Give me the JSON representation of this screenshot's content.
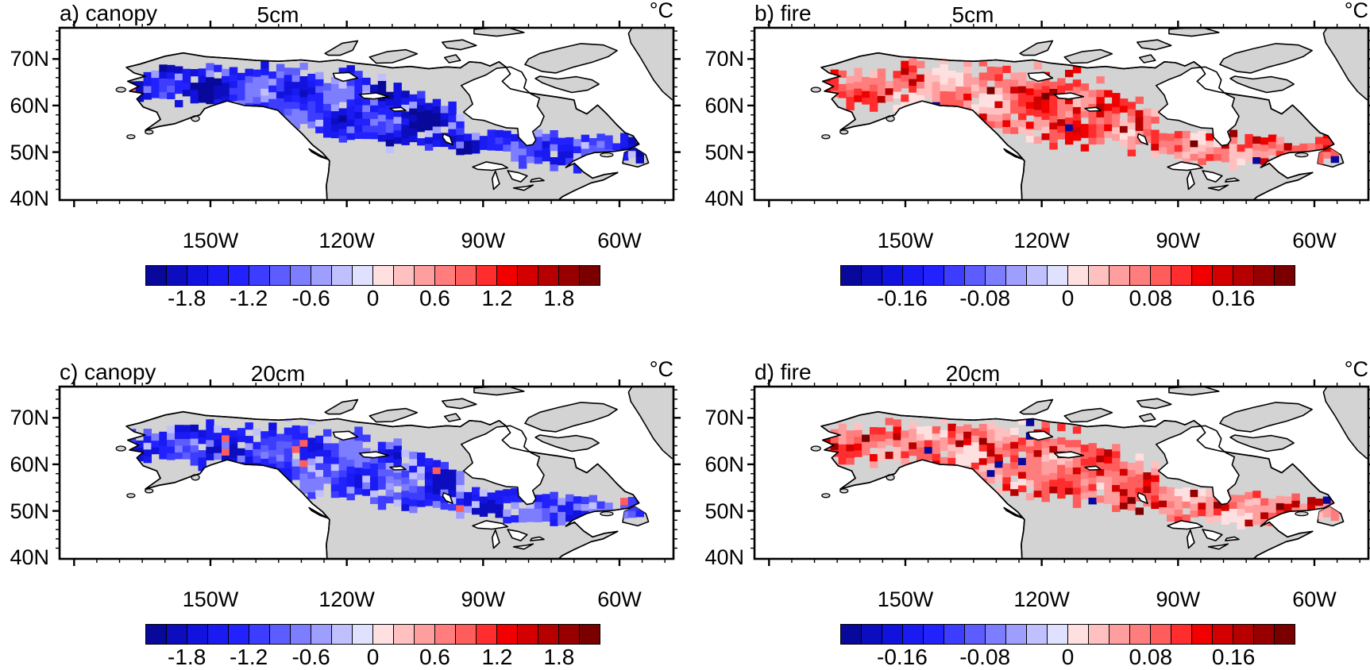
{
  "figure": {
    "unit_label": "°C",
    "land_color": "#d3d3d3",
    "ocean_color": "#ffffff",
    "coast_color": "#000000",
    "frame_color": "#000000"
  },
  "axis": {
    "lat_labels": [
      {
        "text": "70N",
        "lat": 70
      },
      {
        "text": "60N",
        "lat": 60
      },
      {
        "text": "50N",
        "lat": 50
      },
      {
        "text": "40N",
        "lat": 40
      }
    ],
    "lon_labels": [
      {
        "text": "150W",
        "lon": -150
      },
      {
        "text": "120W",
        "lon": -120
      },
      {
        "text": "90W",
        "lon": -90
      },
      {
        "text": "60W",
        "lon": -60
      }
    ]
  },
  "colorbar_colors": [
    "#08089b",
    "#0d0dc0",
    "#1212de",
    "#1a1af2",
    "#2222ff",
    "#3d3dff",
    "#5c5cff",
    "#7d7dff",
    "#9e9eff",
    "#c0c0ff",
    "#e0e0ff",
    "#ffe0e0",
    "#ffc0c0",
    "#ff9e9e",
    "#ff7d7d",
    "#ff5c5c",
    "#ff2d2d",
    "#f20000",
    "#d40000",
    "#b60000",
    "#980000",
    "#7a0000"
  ],
  "panels": [
    {
      "id": "a",
      "title": "a) canopy",
      "depth_label": "5cm",
      "unit_label": "°C",
      "scheme": "canopy_strong",
      "seed": 101,
      "colorbar_ticks": [
        {
          "label": "-1.8",
          "pos": 9.1
        },
        {
          "label": "-1.2",
          "pos": 22.7
        },
        {
          "label": "-0.6",
          "pos": 36.4
        },
        {
          "label": "0",
          "pos": 50
        },
        {
          "label": "0.6",
          "pos": 63.6
        },
        {
          "label": "1.2",
          "pos": 77.3
        },
        {
          "label": "1.8",
          "pos": 90.9
        }
      ]
    },
    {
      "id": "b",
      "title": "b) fire",
      "depth_label": "5cm",
      "unit_label": "°C",
      "scheme": "fire_strong",
      "seed": 202,
      "colorbar_ticks": [
        {
          "label": "-0.16",
          "pos": 13.6
        },
        {
          "label": "-0.08",
          "pos": 31.8
        },
        {
          "label": "0",
          "pos": 50
        },
        {
          "label": "0.08",
          "pos": 68.2
        },
        {
          "label": "0.16",
          "pos": 86.4
        }
      ]
    },
    {
      "id": "c",
      "title": "c) canopy",
      "depth_label": "20cm",
      "unit_label": "°C",
      "scheme": "canopy_soft",
      "seed": 303,
      "colorbar_ticks": [
        {
          "label": "-1.8",
          "pos": 9.1
        },
        {
          "label": "-1.2",
          "pos": 22.7
        },
        {
          "label": "-0.6",
          "pos": 36.4
        },
        {
          "label": "0",
          "pos": 50
        },
        {
          "label": "0.6",
          "pos": 63.6
        },
        {
          "label": "1.2",
          "pos": 77.3
        },
        {
          "label": "1.8",
          "pos": 90.9
        }
      ]
    },
    {
      "id": "d",
      "title": "d) fire",
      "depth_label": "20cm",
      "unit_label": "°C",
      "scheme": "fire_soft",
      "seed": 404,
      "colorbar_ticks": [
        {
          "label": "-0.16",
          "pos": 13.6
        },
        {
          "label": "-0.08",
          "pos": 31.8
        },
        {
          "label": "0",
          "pos": 50
        },
        {
          "label": "0.08",
          "pos": 68.2
        },
        {
          "label": "0.16",
          "pos": 86.4
        }
      ]
    }
  ],
  "chart_data": [
    {
      "type": "heatmap",
      "title": "a) canopy",
      "subtitle": "5cm",
      "units": "°C",
      "x": {
        "ticks": [
          "150W",
          "120W",
          "90W",
          "60W"
        ],
        "range_lon": [
          -170,
          -35
        ]
      },
      "y": {
        "ticks": [
          "70N",
          "60N",
          "50N",
          "40N"
        ],
        "range_lat": [
          40,
          77
        ]
      },
      "colorbar": {
        "tick_values": [
          -1.8,
          -1.2,
          -0.6,
          0,
          0.6,
          1.2,
          1.8
        ],
        "range": [
          -2.2,
          2.2
        ],
        "n_segments": 22,
        "palette": "blue-white-red"
      },
      "summary": "Soil temperature change at 5 cm depth due to canopy: widespread strong cooling of about -0.6 to -2.0 °C across the boreal band from interior Alaska through central Canada to eastern Canada; lighter cooling (-0.1 to -0.6 °C) along band edges and in central Yukon."
    },
    {
      "type": "heatmap",
      "title": "b) fire",
      "subtitle": "5cm",
      "units": "°C",
      "x": {
        "ticks": [
          "150W",
          "120W",
          "90W",
          "60W"
        ],
        "range_lon": [
          -170,
          -35
        ]
      },
      "y": {
        "ticks": [
          "70N",
          "60N",
          "50N",
          "40N"
        ],
        "range_lat": [
          40,
          77
        ]
      },
      "colorbar": {
        "tick_values": [
          -0.16,
          -0.08,
          0,
          0.08,
          0.16
        ],
        "range": [
          -0.22,
          0.22
        ],
        "n_segments": 22,
        "palette": "blue-white-red"
      },
      "summary": "Soil temperature change at 5 cm depth due to fire: mottled warming of about +0.02 to +0.16 °C over the same boreal band, strongest (+0.1 to +0.2 °C) in Alaska and northwest Canada, with scattered grid cells of strong cooling (dark blue dots, about -0.2 °C)."
    },
    {
      "type": "heatmap",
      "title": "c) canopy",
      "subtitle": "20cm",
      "units": "°C",
      "x": {
        "ticks": [
          "150W",
          "120W",
          "90W",
          "60W"
        ],
        "range_lon": [
          -170,
          -35
        ]
      },
      "y": {
        "ticks": [
          "70N",
          "60N",
          "50N",
          "40N"
        ],
        "range_lat": [
          40,
          77
        ]
      },
      "colorbar": {
        "tick_values": [
          -1.8,
          -1.2,
          -0.6,
          0,
          0.6,
          1.2,
          1.8
        ],
        "range": [
          -2.2,
          2.2
        ],
        "n_segments": 22,
        "palette": "blue-white-red"
      },
      "summary": "Soil temperature change at 20 cm depth due to canopy: moderate cooling of about -0.3 to -1.5 °C across the boreal band, weaker and smoother than at 5 cm, with a few tiny warm (red) specks."
    },
    {
      "type": "heatmap",
      "title": "d) fire",
      "subtitle": "20cm",
      "units": "°C",
      "x": {
        "ticks": [
          "150W",
          "120W",
          "90W",
          "60W"
        ],
        "range_lon": [
          -170,
          -35
        ]
      },
      "y": {
        "ticks": [
          "70N",
          "60N",
          "50N",
          "40N"
        ],
        "range_lat": [
          40,
          77
        ]
      },
      "colorbar": {
        "tick_values": [
          -0.16,
          -0.08,
          0,
          0.08,
          0.16
        ],
        "range": [
          -0.22,
          0.22
        ],
        "n_segments": 22,
        "palette": "blue-white-red"
      },
      "summary": "Soil temperature change at 20 cm depth due to fire: patchy warming of about +0.02 to +0.16 °C over the boreal band with more frequent dark-red strong-warming specks and scattered dark-blue strong-cooling grid cells."
    }
  ]
}
